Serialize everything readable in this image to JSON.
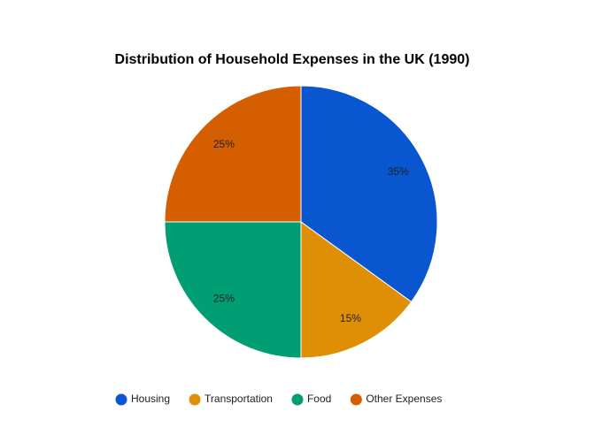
{
  "chart_data": {
    "type": "pie",
    "title": "Distribution of Household Expenses in the UK (1990)",
    "categories": [
      "Housing",
      "Transportation",
      "Food",
      "Other Expenses"
    ],
    "values": [
      35,
      15,
      25,
      25
    ],
    "value_labels": [
      "35%",
      "15%",
      "25%",
      "25%"
    ],
    "colors": [
      "#0a56d0",
      "#de8f05",
      "#029e73",
      "#d55e00"
    ],
    "legend": "bottom"
  }
}
